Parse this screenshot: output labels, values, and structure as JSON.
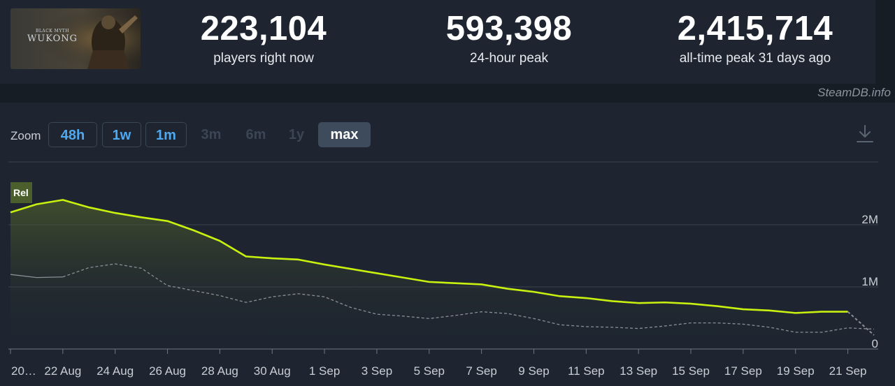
{
  "header": {
    "game_thumb": {
      "line1": "BLACK MYTH",
      "line2": "WUKONG"
    },
    "stats": [
      {
        "value": "223,104",
        "label": "players right now"
      },
      {
        "value": "593,398",
        "label": "24-hour peak"
      },
      {
        "value": "2,415,714",
        "label": "all-time peak 31 days ago"
      }
    ],
    "brand": "SteamDB.info"
  },
  "toolbar": {
    "zoom_label": "Zoom",
    "buttons": [
      {
        "label": "48h",
        "state": "active"
      },
      {
        "label": "1w",
        "state": "active"
      },
      {
        "label": "1m",
        "state": "active"
      },
      {
        "label": "3m",
        "state": "disabled"
      },
      {
        "label": "6m",
        "state": "disabled"
      },
      {
        "label": "1y",
        "state": "disabled"
      },
      {
        "label": "max",
        "state": "selected"
      }
    ],
    "download_icon": "download-icon"
  },
  "colors": {
    "background": "#171d25",
    "panel": "#1e2530",
    "series_players": "#c8f10f",
    "series_twitch": "#8a8f94",
    "zoom_active": "#4ea9f0"
  },
  "chart_data": {
    "type": "line",
    "badge": "Rel",
    "x_tick_labels": [
      "20…",
      "22 Aug",
      "24 Aug",
      "26 Aug",
      "28 Aug",
      "30 Aug",
      "1 Sep",
      "3 Sep",
      "5 Sep",
      "7 Sep",
      "9 Sep",
      "11 Sep",
      "13 Sep",
      "15 Sep",
      "17 Sep",
      "19 Sep",
      "21 Sep"
    ],
    "y_tick_labels": [
      "0",
      "1M",
      "2M"
    ],
    "y_ticks": [
      0,
      1000000,
      2000000
    ],
    "ylim": [
      0,
      3000000
    ],
    "x_range": [
      "2024-08-20",
      "2024-09-22"
    ],
    "grid": true,
    "series": [
      {
        "role": "players",
        "style": "solid",
        "area_fill": true,
        "points": [
          [
            "2024-08-20",
            2200000
          ],
          [
            "2024-08-21",
            2330000
          ],
          [
            "2024-08-22",
            2400000
          ],
          [
            "2024-08-23",
            2280000
          ],
          [
            "2024-08-24",
            2190000
          ],
          [
            "2024-08-25",
            2120000
          ],
          [
            "2024-08-26",
            2060000
          ],
          [
            "2024-08-27",
            1910000
          ],
          [
            "2024-08-28",
            1740000
          ],
          [
            "2024-08-29",
            1490000
          ],
          [
            "2024-08-30",
            1460000
          ],
          [
            "2024-08-31",
            1440000
          ],
          [
            "2024-09-01",
            1360000
          ],
          [
            "2024-09-02",
            1290000
          ],
          [
            "2024-09-03",
            1220000
          ],
          [
            "2024-09-04",
            1150000
          ],
          [
            "2024-09-05",
            1080000
          ],
          [
            "2024-09-06",
            1060000
          ],
          [
            "2024-09-07",
            1040000
          ],
          [
            "2024-09-08",
            970000
          ],
          [
            "2024-09-09",
            920000
          ],
          [
            "2024-09-10",
            850000
          ],
          [
            "2024-09-11",
            820000
          ],
          [
            "2024-09-12",
            770000
          ],
          [
            "2024-09-13",
            740000
          ],
          [
            "2024-09-14",
            750000
          ],
          [
            "2024-09-15",
            730000
          ],
          [
            "2024-09-16",
            690000
          ],
          [
            "2024-09-17",
            640000
          ],
          [
            "2024-09-18",
            620000
          ],
          [
            "2024-09-19",
            580000
          ],
          [
            "2024-09-20",
            600000
          ],
          [
            "2024-09-21",
            600000
          ]
        ],
        "tail_dashed_to": [
          "2024-09-22",
          223104
        ]
      },
      {
        "role": "twitch",
        "style": "solid-then-dashed",
        "points": [
          [
            "2024-08-20",
            1200000
          ],
          [
            "2024-08-21",
            1150000
          ],
          [
            "2024-08-22",
            1160000
          ],
          [
            "2024-08-23",
            1310000
          ],
          [
            "2024-08-24",
            1370000
          ],
          [
            "2024-08-25",
            1300000
          ],
          [
            "2024-08-26",
            1020000
          ],
          [
            "2024-08-27",
            940000
          ],
          [
            "2024-08-28",
            860000
          ],
          [
            "2024-08-29",
            750000
          ],
          [
            "2024-08-30",
            840000
          ],
          [
            "2024-08-31",
            890000
          ],
          [
            "2024-09-01",
            840000
          ],
          [
            "2024-09-02",
            670000
          ],
          [
            "2024-09-03",
            560000
          ],
          [
            "2024-09-04",
            530000
          ],
          [
            "2024-09-05",
            490000
          ],
          [
            "2024-09-06",
            540000
          ],
          [
            "2024-09-07",
            600000
          ],
          [
            "2024-09-08",
            570000
          ],
          [
            "2024-09-09",
            490000
          ],
          [
            "2024-09-10",
            390000
          ],
          [
            "2024-09-11",
            360000
          ],
          [
            "2024-09-12",
            350000
          ],
          [
            "2024-09-13",
            330000
          ],
          [
            "2024-09-14",
            370000
          ],
          [
            "2024-09-15",
            420000
          ],
          [
            "2024-09-16",
            420000
          ],
          [
            "2024-09-17",
            400000
          ],
          [
            "2024-09-18",
            350000
          ],
          [
            "2024-09-19",
            270000
          ],
          [
            "2024-09-20",
            270000
          ],
          [
            "2024-09-21",
            340000
          ],
          [
            "2024-09-22",
            320000
          ]
        ],
        "solid_until": "2024-08-22"
      }
    ]
  }
}
